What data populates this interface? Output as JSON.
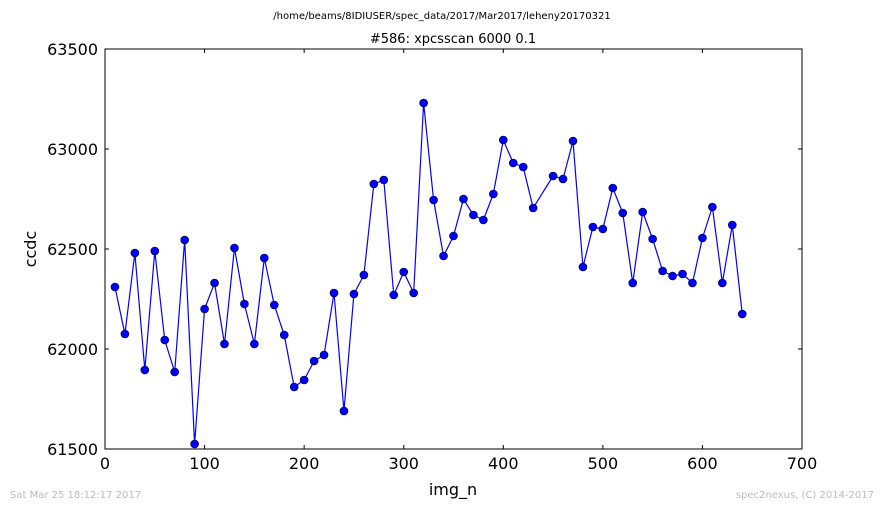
{
  "header": {
    "path": "/home/beams/8IDIUSER/spec_data/2017/Mar2017/leheny20170321"
  },
  "footer": {
    "timestamp": "Sat Mar 25 18:12:17 2017",
    "credit": "spec2nexus, (C) 2014-2017"
  },
  "colors": {
    "series": "#0000ff",
    "axes": "#000000",
    "footer_text": "#bbbbbb"
  },
  "chart_data": {
    "type": "line",
    "title": "#586: xpcsscan 6000 0.1",
    "xlabel": "img_n",
    "ylabel": "ccdc",
    "xlim": [
      0,
      700
    ],
    "ylim": [
      61500,
      63500
    ],
    "xticks": [
      "0",
      "100",
      "200",
      "300",
      "400",
      "500",
      "600",
      "700"
    ],
    "yticks": [
      "61500",
      "62000",
      "62500",
      "63000",
      "63500"
    ],
    "grid": false,
    "markers": "circle",
    "x": [
      10,
      20,
      30,
      40,
      50,
      60,
      70,
      80,
      90,
      100,
      110,
      120,
      130,
      140,
      150,
      160,
      170,
      180,
      190,
      200,
      210,
      220,
      230,
      240,
      250,
      260,
      270,
      280,
      290,
      300,
      310,
      320,
      330,
      340,
      350,
      360,
      370,
      380,
      390,
      400,
      410,
      420,
      430,
      450,
      460,
      470,
      480,
      490,
      500,
      510,
      520,
      530,
      540,
      550,
      560,
      570,
      580,
      590,
      600,
      610,
      620,
      630,
      640
    ],
    "y": [
      62310,
      62075,
      62480,
      61895,
      62490,
      62045,
      61885,
      62545,
      61525,
      62200,
      62330,
      62025,
      62505,
      62225,
      62025,
      62455,
      62220,
      62070,
      61810,
      61845,
      61940,
      61970,
      62280,
      61690,
      62275,
      62370,
      62825,
      62845,
      62270,
      62385,
      62280,
      63230,
      62745,
      62465,
      62565,
      62750,
      62670,
      62645,
      62775,
      63045,
      62930,
      62910,
      62705,
      62865,
      62850,
      63040,
      62410,
      62610,
      62600,
      62805,
      62680,
      62330,
      62685,
      62550,
      62390,
      62365,
      62375,
      62330,
      62555,
      62710,
      62330,
      62620,
      62175
    ]
  }
}
